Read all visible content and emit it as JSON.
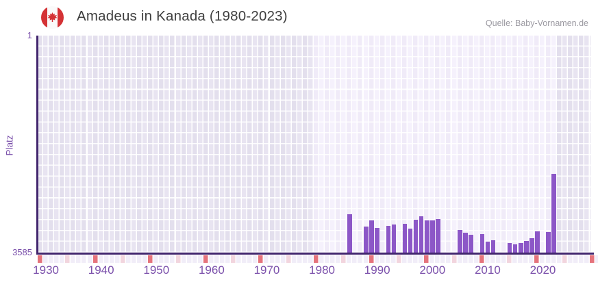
{
  "header": {
    "title": "Amadeus in Kanada (1980-2023)",
    "source": "Quelle: Baby-Vornamen.de",
    "flag_icon": "canada-flag-icon"
  },
  "chart_data": {
    "type": "bar",
    "title": "Amadeus in Kanada (1980-2023)",
    "xlabel": "",
    "ylabel": "Platz",
    "y_axis": {
      "top_tick": "1",
      "bottom_tick": "3585",
      "min": 1,
      "max": 3585,
      "inverted": true,
      "grid": true
    },
    "x_axis": {
      "start_year": 1929,
      "end_year": 2028,
      "tick_years": [
        1930,
        1940,
        1950,
        1960,
        1970,
        1980,
        1990,
        2000,
        2010,
        2020
      ]
    },
    "data_window": {
      "from": 1979,
      "to": 2022
    },
    "points": [
      {
        "year": 1985,
        "rank": 2950
      },
      {
        "year": 1988,
        "rank": 3155
      },
      {
        "year": 1989,
        "rank": 3055
      },
      {
        "year": 1990,
        "rank": 3180
      },
      {
        "year": 1992,
        "rank": 3145
      },
      {
        "year": 1993,
        "rank": 3125
      },
      {
        "year": 1995,
        "rank": 3110
      },
      {
        "year": 1996,
        "rank": 3190
      },
      {
        "year": 1997,
        "rank": 3045
      },
      {
        "year": 1998,
        "rank": 2990
      },
      {
        "year": 1999,
        "rank": 3055
      },
      {
        "year": 2000,
        "rank": 3055
      },
      {
        "year": 2001,
        "rank": 3030
      },
      {
        "year": 2005,
        "rank": 3215
      },
      {
        "year": 2006,
        "rank": 3260
      },
      {
        "year": 2007,
        "rank": 3290
      },
      {
        "year": 2009,
        "rank": 3280
      },
      {
        "year": 2010,
        "rank": 3405
      },
      {
        "year": 2011,
        "rank": 3385
      },
      {
        "year": 2014,
        "rank": 3425
      },
      {
        "year": 2015,
        "rank": 3450
      },
      {
        "year": 2016,
        "rank": 3425
      },
      {
        "year": 2017,
        "rank": 3395
      },
      {
        "year": 2018,
        "rank": 3350
      },
      {
        "year": 2019,
        "rank": 3235
      },
      {
        "year": 2021,
        "rank": 3245
      },
      {
        "year": 2022,
        "rank": 2285
      }
    ],
    "bottom_strip": {
      "red_years": [
        1929,
        1939,
        1949,
        1959,
        1969,
        1979,
        1989,
        1999,
        2009,
        2019,
        2029
      ],
      "pink_years": [
        1934,
        1944,
        1954,
        1964,
        1974,
        1984,
        1994,
        2004,
        2014,
        2024
      ]
    },
    "colors": {
      "bar": "#8c57c7",
      "axis": "#42266e",
      "tick_text": "#7b50ab",
      "title_text": "#3e3e3e",
      "source_text": "#9b99a1",
      "bg_dark_even": "#e3dfed",
      "bg_dark_odd": "#e8e4f1",
      "bg_light_even": "#f0ebf8",
      "bg_light_odd": "#f5f1fc",
      "strip_default": "#f1edf8",
      "strip_red": "#e5737c",
      "strip_pink": "#f2d5de",
      "flag_red": "#d43235"
    }
  }
}
